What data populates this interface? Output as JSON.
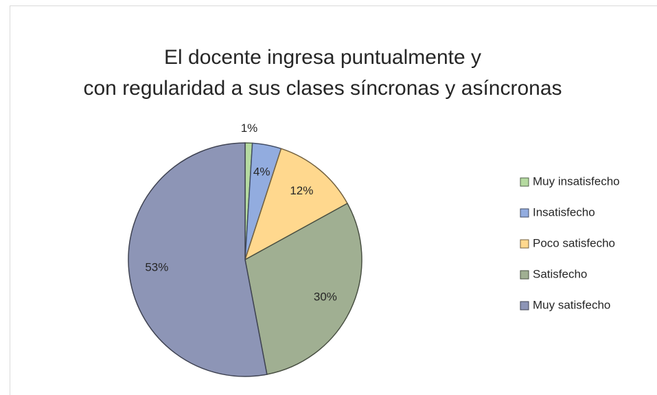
{
  "chart_data": {
    "type": "pie",
    "title": "El docente ingresa puntualmente y con regularidad a sus clases síncronas y asíncronas",
    "categories": [
      "Muy insatisfecho",
      "Insatisfecho",
      "Poco satisfecho",
      "Satisfecho",
      "Muy satisfecho"
    ],
    "values": [
      1,
      4,
      12,
      30,
      53
    ],
    "value_labels": [
      "1%",
      "4%",
      "12%",
      "30%",
      "53%"
    ],
    "colors": [
      "#b5daa0",
      "#92acdf",
      "#ffd88e",
      "#a0af92",
      "#8d95b6"
    ],
    "legend": "right"
  }
}
